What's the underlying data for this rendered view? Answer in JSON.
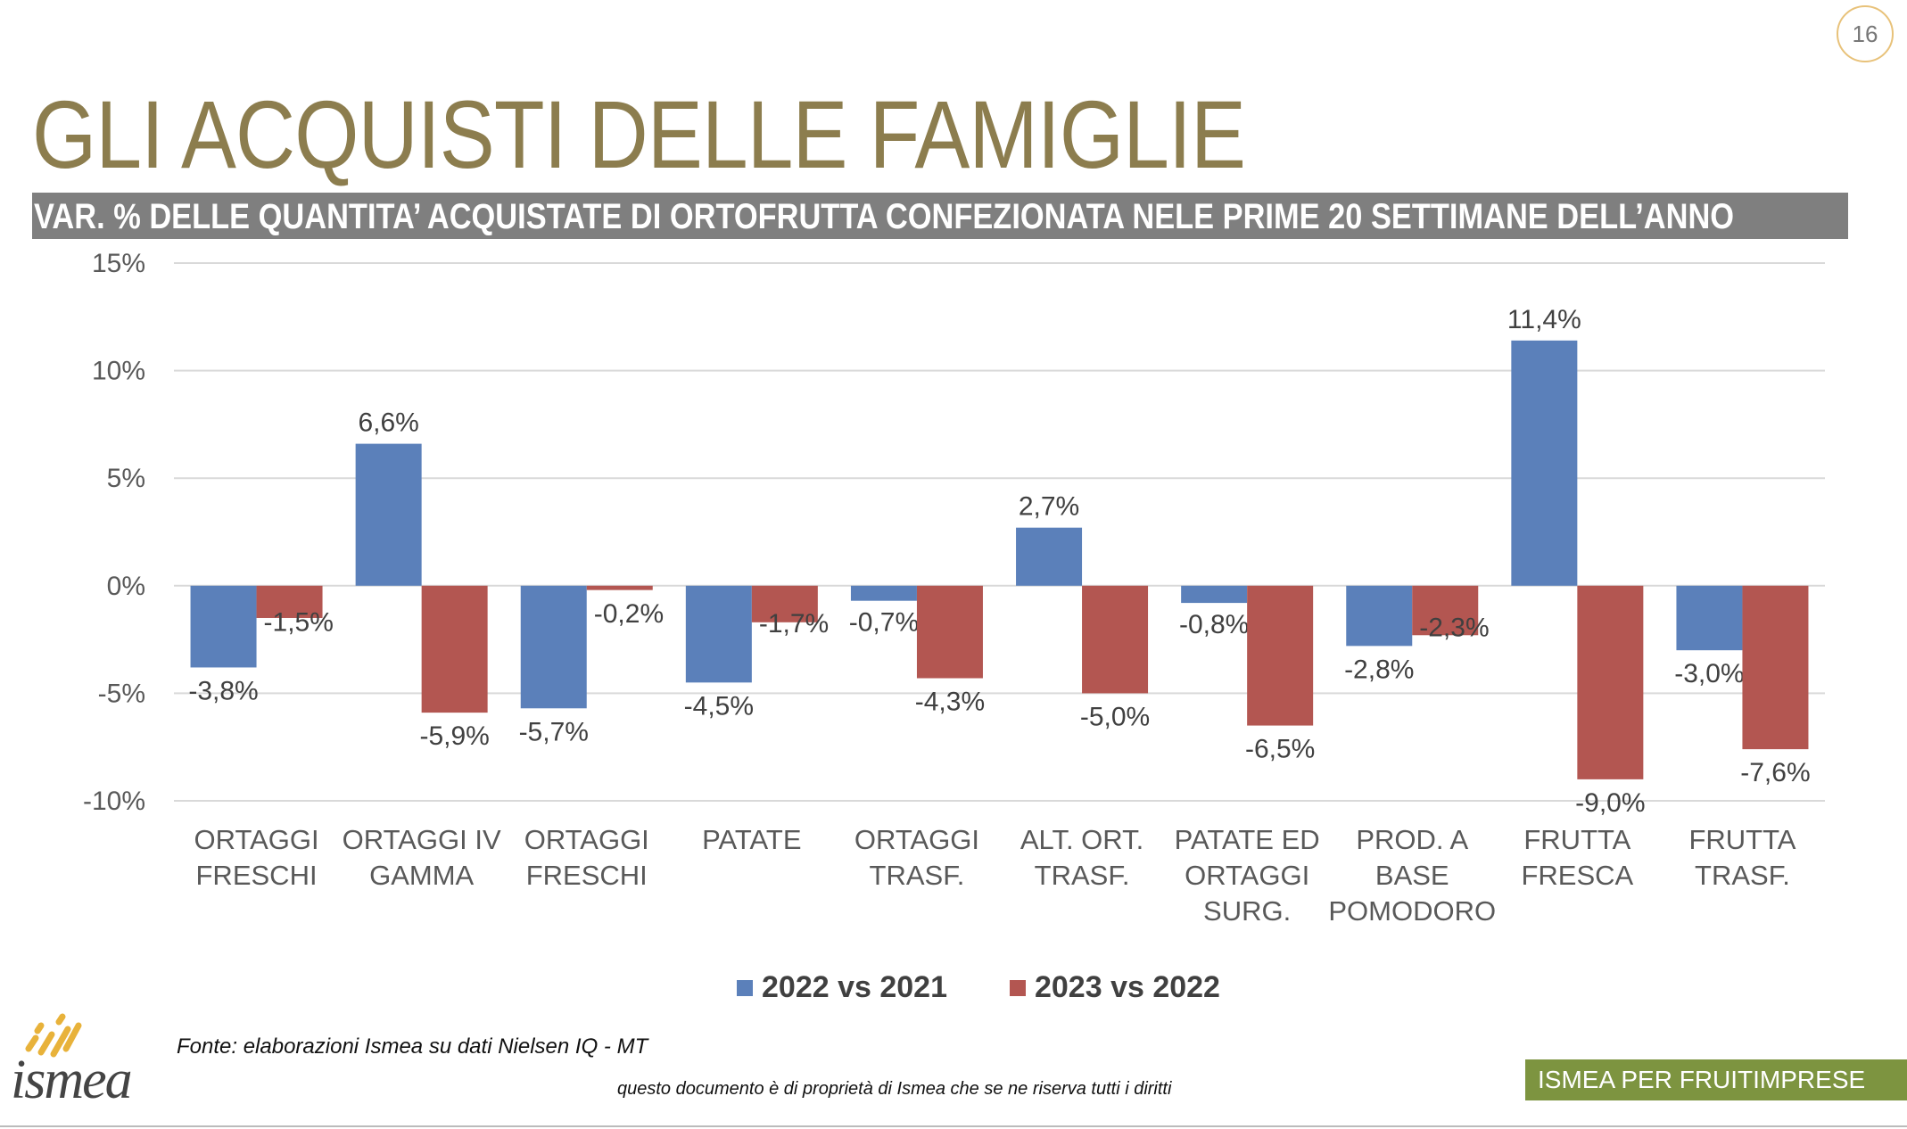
{
  "page_number": "16",
  "title": "GLI ACQUISTI DELLE FAMIGLIE",
  "subtitle": "VAR. % DELLE QUANTITA’ ACQUISTATE DI ORTOFRUTTA CONFEZIONATA NELE PRIME 20 SETTIMANE DELL’ANNO",
  "source": "Fonte: elaborazioni Ismea su dati Nielsen IQ - MT",
  "copyright": "questo documento è di proprietà di Ismea che se ne riserva tutti i diritti",
  "footer_tag": "ISMEA PER FRUITIMPRESE",
  "logo_text": "ismea",
  "colors": {
    "series_2022": "#5b80ba",
    "series_2023": "#b35651",
    "title": "#8c7d4e",
    "subtitle_bar": "#7f7f7f",
    "footer": "#7d9440",
    "logo_accent": "#e8b23a"
  },
  "legend": [
    "2022 vs 2021",
    "2023 vs 2022"
  ],
  "chart_data": {
    "type": "bar",
    "categories": [
      [
        "ORTAGGI",
        "FRESCHI"
      ],
      [
        "ORTAGGI IV",
        "GAMMA"
      ],
      [
        "ORTAGGI",
        "FRESCHI"
      ],
      [
        "PATATE"
      ],
      [
        "ORTAGGI",
        "TRASF."
      ],
      [
        "ALT. ORT.",
        "TRASF."
      ],
      [
        "PATATE ED",
        "ORTAGGI",
        "SURG."
      ],
      [
        "PROD. A",
        "BASE",
        "POMODORO"
      ],
      [
        "FRUTTA",
        "FRESCA"
      ],
      [
        "FRUTTA",
        "TRASF."
      ]
    ],
    "series": [
      {
        "name": "2022 vs 2021",
        "values": [
          -3.8,
          6.6,
          -5.7,
          -4.5,
          -0.7,
          2.7,
          -0.8,
          -2.8,
          11.4,
          -3.0
        ],
        "labels": [
          "-3,8%",
          "6,6%",
          "-5,7%",
          "-4,5%",
          "-0,7%",
          "2,7%",
          "-0,8%",
          "-2,8%",
          "11,4%",
          "-3,0%"
        ]
      },
      {
        "name": "2023 vs 2022",
        "values": [
          -1.5,
          -5.9,
          -0.2,
          -1.7,
          -4.3,
          -5.0,
          -6.5,
          -2.3,
          -9.0,
          -7.6
        ],
        "labels": [
          "-1,5%",
          "-5,9%",
          "-0,2%",
          "-1,7%",
          "-4,3%",
          "-5,0%",
          "-6,5%",
          "-2,3%",
          "-9,0%",
          "-7,6%"
        ]
      }
    ],
    "y_ticks": [
      15,
      10,
      5,
      0,
      -5,
      -10
    ],
    "y_tick_labels": [
      "15%",
      "10%",
      "5%",
      "0%",
      "-5%",
      "-10%"
    ],
    "ylim": [
      -10,
      15
    ],
    "grid": true,
    "legend_position": "bottom"
  }
}
